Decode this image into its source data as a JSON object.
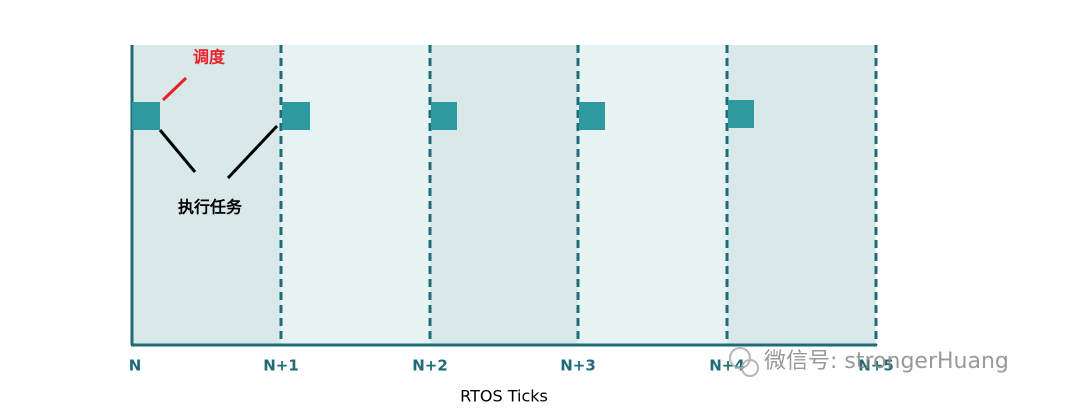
{
  "annotations": {
    "schedule": "调度",
    "execute": "执行任务"
  },
  "axis": {
    "ticks": [
      "N",
      "N+1",
      "N+2",
      "N+3",
      "N+4",
      "N+5"
    ],
    "label": "RTOS Ticks"
  },
  "watermark": "微信号: strongerHuang"
}
